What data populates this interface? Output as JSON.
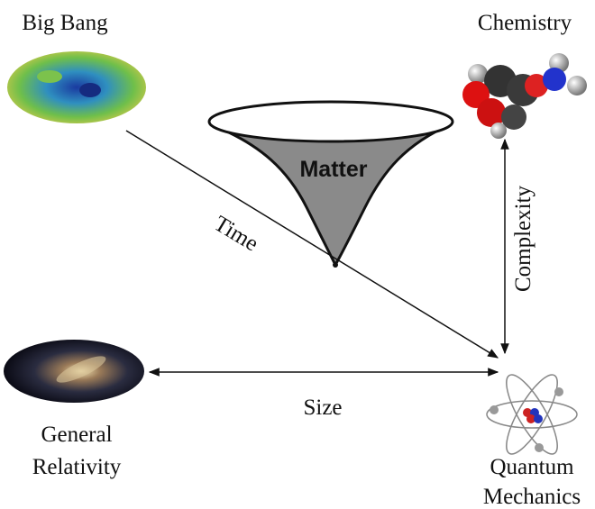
{
  "nodes": [
    {
      "label": [
        "Big Bang"
      ]
    },
    {
      "label": [
        "Chemistry"
      ]
    },
    {
      "label": [
        "General",
        "Relativity"
      ]
    },
    {
      "label": [
        "Quantum",
        "Mechanics"
      ]
    }
  ],
  "funnel": {
    "label": "Matter"
  },
  "axes": {
    "time": "Time",
    "complexity": "Complexity",
    "size": "Size"
  }
}
